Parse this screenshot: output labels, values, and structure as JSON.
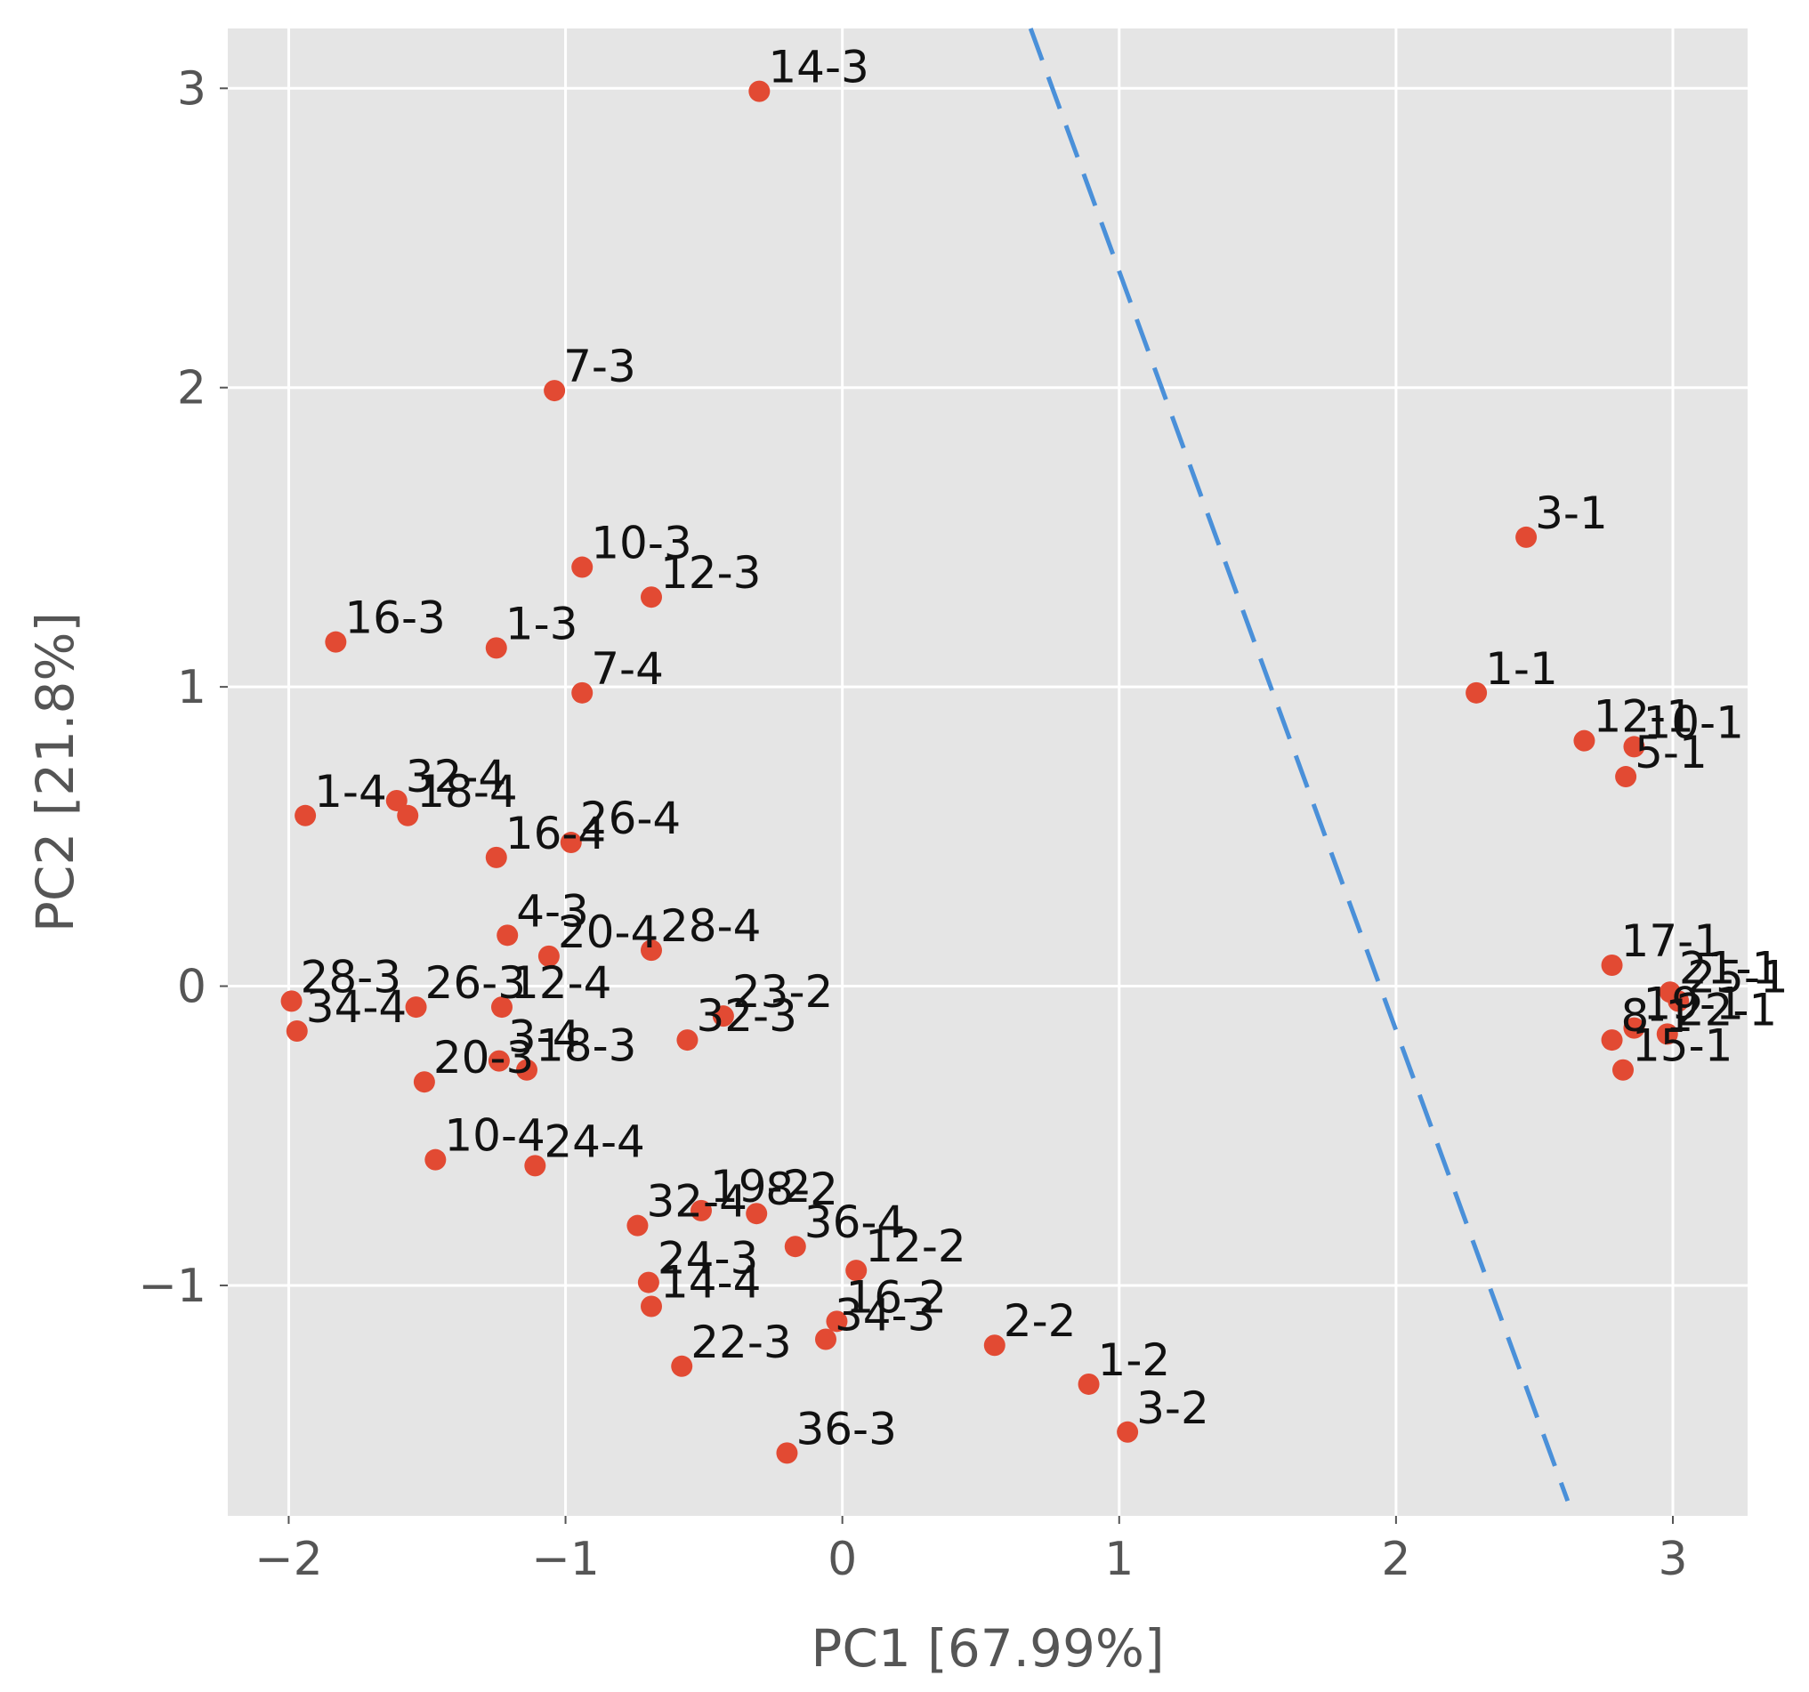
{
  "chart_data": {
    "type": "scatter",
    "title": "",
    "xlabel": "PC1 [67.99%]",
    "ylabel": "PC2 [21.8%]",
    "xlim": [
      -2.22,
      3.27
    ],
    "ylim": [
      -1.77,
      3.2
    ],
    "xticks": [
      -2,
      -1,
      0,
      1,
      2,
      3
    ],
    "yticks": [
      -1,
      0,
      1,
      2,
      3
    ],
    "xtick_labels": [
      "−2",
      "−1",
      "0",
      "1",
      "2",
      "3"
    ],
    "ytick_labels": [
      "−1",
      "0",
      "1",
      "2",
      "3"
    ],
    "grid": true,
    "point_color": "#E24A33",
    "background_color": "#E5E5E5",
    "grid_color": "#FFFFFF",
    "divider": {
      "style": "dashed",
      "color": "#4A90D9",
      "x": [
        0.68,
        2.62
      ],
      "y": [
        3.2,
        -1.72
      ]
    },
    "points": [
      {
        "label": "14-3",
        "x": -0.3,
        "y": 2.99
      },
      {
        "label": "7-3",
        "x": -1.04,
        "y": 1.99
      },
      {
        "label": "3-1",
        "x": 2.47,
        "y": 1.5
      },
      {
        "label": "10-3",
        "x": -0.94,
        "y": 1.4
      },
      {
        "label": "12-3",
        "x": -0.69,
        "y": 1.3
      },
      {
        "label": "16-3",
        "x": -1.83,
        "y": 1.15
      },
      {
        "label": "1-3",
        "x": -1.25,
        "y": 1.13
      },
      {
        "label": "7-4",
        "x": -0.94,
        "y": 0.98
      },
      {
        "label": "1-1",
        "x": 2.29,
        "y": 0.98
      },
      {
        "label": "12-1",
        "x": 2.68,
        "y": 0.82
      },
      {
        "label": "10-1",
        "x": 2.86,
        "y": 0.8
      },
      {
        "label": "5-1",
        "x": 2.83,
        "y": 0.7
      },
      {
        "label": "1-4",
        "x": -1.94,
        "y": 0.57
      },
      {
        "label": "32-4",
        "x": -1.61,
        "y": 0.62
      },
      {
        "label": "18-4",
        "x": -1.57,
        "y": 0.57
      },
      {
        "label": "26-4",
        "x": -0.98,
        "y": 0.48
      },
      {
        "label": "16-4",
        "x": -1.25,
        "y": 0.43
      },
      {
        "label": "4-3",
        "x": -1.21,
        "y": 0.17
      },
      {
        "label": "20-4",
        "x": -1.06,
        "y": 0.1
      },
      {
        "label": "28-4",
        "x": -0.69,
        "y": 0.12
      },
      {
        "label": "17-1",
        "x": 2.78,
        "y": 0.07
      },
      {
        "label": "21-1",
        "x": 2.99,
        "y": -0.02
      },
      {
        "label": "25-1",
        "x": 3.02,
        "y": -0.05
      },
      {
        "label": "28-3",
        "x": -1.99,
        "y": -0.05
      },
      {
        "label": "26-3",
        "x": -1.54,
        "y": -0.07
      },
      {
        "label": "12-4",
        "x": -1.23,
        "y": -0.07
      },
      {
        "label": "23-2",
        "x": -0.43,
        "y": -0.1
      },
      {
        "label": "32-3",
        "x": -0.56,
        "y": -0.18
      },
      {
        "label": "34-4",
        "x": -1.97,
        "y": -0.15
      },
      {
        "label": "8-1",
        "x": 2.78,
        "y": -0.18
      },
      {
        "label": "19-1",
        "x": 2.86,
        "y": -0.14
      },
      {
        "label": "22-1",
        "x": 2.98,
        "y": -0.16
      },
      {
        "label": "15-1",
        "x": 2.82,
        "y": -0.28
      },
      {
        "label": "3-4",
        "x": -1.24,
        "y": -0.25
      },
      {
        "label": "18-3",
        "x": -1.14,
        "y": -0.28
      },
      {
        "label": "20-3",
        "x": -1.51,
        "y": -0.32
      },
      {
        "label": "10-4",
        "x": -1.47,
        "y": -0.58
      },
      {
        "label": "24-4",
        "x": -1.11,
        "y": -0.6
      },
      {
        "label": "19-2",
        "x": -0.51,
        "y": -0.75
      },
      {
        "label": "8-2",
        "x": -0.31,
        "y": -0.76
      },
      {
        "label": "32-4",
        "x": -0.74,
        "y": -0.8
      },
      {
        "label": "36-4",
        "x": -0.17,
        "y": -0.87
      },
      {
        "label": "12-2",
        "x": 0.05,
        "y": -0.95
      },
      {
        "label": "24-3",
        "x": -0.7,
        "y": -0.99
      },
      {
        "label": "14-4",
        "x": -0.69,
        "y": -1.07
      },
      {
        "label": "16-2",
        "x": -0.02,
        "y": -1.12
      },
      {
        "label": "34-3",
        "x": -0.06,
        "y": -1.18
      },
      {
        "label": "2-2",
        "x": 0.55,
        "y": -1.2
      },
      {
        "label": "22-3",
        "x": -0.58,
        "y": -1.27
      },
      {
        "label": "1-2",
        "x": 0.89,
        "y": -1.33
      },
      {
        "label": "3-2",
        "x": 1.03,
        "y": -1.49
      },
      {
        "label": "36-3",
        "x": -0.2,
        "y": -1.56
      }
    ]
  }
}
